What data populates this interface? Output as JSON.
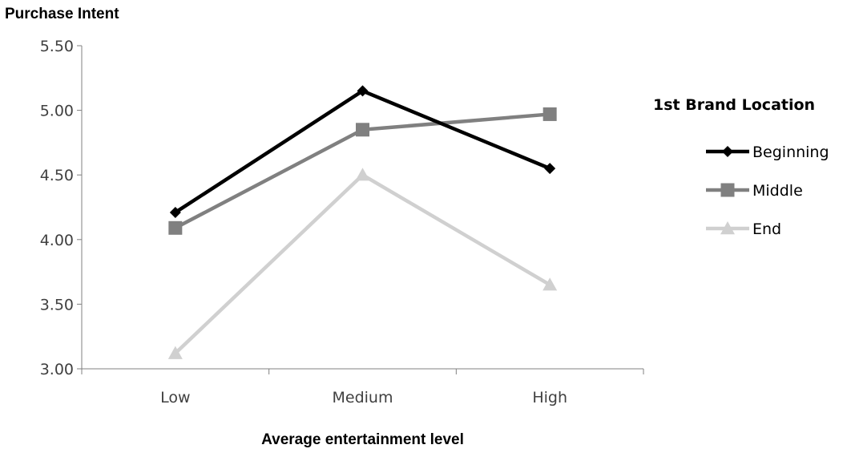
{
  "chart_data": {
    "type": "line",
    "title": "",
    "ylabel": "Purchase Intent",
    "xlabel": "Average entertainment level",
    "categories": [
      "Low",
      "Medium",
      "High"
    ],
    "ylim": [
      3.0,
      5.5
    ],
    "yticks": [
      "3.00",
      "3.50",
      "4.00",
      "4.50",
      "5.00",
      "5.50"
    ],
    "grid": false,
    "legend_title": "1st Brand Location",
    "legend_position": "right",
    "series": [
      {
        "name": "Beginning",
        "values": [
          4.21,
          5.15,
          4.55
        ],
        "color": "#000000",
        "marker": "diamond"
      },
      {
        "name": "Middle",
        "values": [
          4.09,
          4.85,
          4.97
        ],
        "color": "#808080",
        "marker": "square"
      },
      {
        "name": "End",
        "values": [
          3.12,
          4.5,
          3.65
        ],
        "color": "#d0d0d0",
        "marker": "triangle"
      }
    ]
  }
}
